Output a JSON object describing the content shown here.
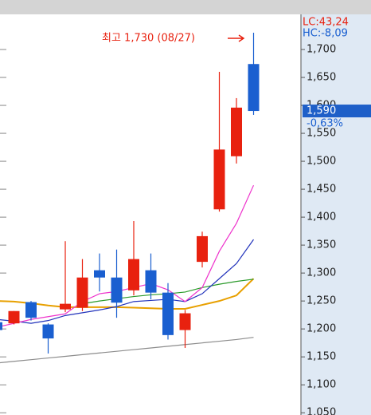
{
  "chart_data": {
    "type": "candlestick",
    "categories": [
      null,
      null,
      null,
      null,
      null,
      null,
      null,
      null,
      null,
      null,
      null,
      null,
      null,
      null,
      null,
      null
    ],
    "candles": {
      "open": [
        1212,
        1210,
        1248,
        1208,
        1235,
        1238,
        1305,
        1292,
        1269,
        1305,
        1265,
        1198,
        1320,
        1414,
        1509,
        1674
      ],
      "high": [
        1215,
        1232,
        1250,
        1210,
        1357,
        1325,
        1335,
        1342,
        1393,
        1335,
        1282,
        1234,
        1374,
        1660,
        1613,
        1730
      ],
      "low": [
        1195,
        1208,
        1215,
        1156,
        1230,
        1232,
        1267,
        1220,
        1260,
        1253,
        1181,
        1166,
        1310,
        1410,
        1496,
        1583
      ],
      "close": [
        1198,
        1232,
        1220,
        1183,
        1245,
        1292,
        1292,
        1247,
        1325,
        1265,
        1189,
        1228,
        1366,
        1521,
        1596,
        1590
      ],
      "up_color": "#e8210f",
      "down_color": "#1a5fd0"
    },
    "lines": [
      {
        "color": "#8c8c8c",
        "values": [
          1139,
          1142,
          1145,
          1148,
          1151,
          1154,
          1157,
          1160,
          1163,
          1166,
          1169,
          1172,
          1175,
          1178,
          1181,
          1185
        ]
      },
      {
        "color": "#e8a000",
        "values": [
          1250,
          1249,
          1246,
          1242,
          1239,
          1239,
          1239,
          1239,
          1238,
          1237,
          1236,
          1236,
          1243,
          1250,
          1260,
          1290
        ]
      },
      {
        "color": "#2a9a2a",
        "values": [
          null,
          null,
          null,
          null,
          null,
          1245,
          1250,
          1254,
          1258,
          1261,
          1263,
          1266,
          1274,
          1280,
          1285,
          1289
        ]
      },
      {
        "color": "#2233bb",
        "values": [
          1217,
          1214,
          1210,
          1215,
          1224,
          1229,
          1234,
          1240,
          1249,
          1251,
          1253,
          1249,
          1263,
          1290,
          1317,
          1360
        ]
      },
      {
        "color": "#ee33cc",
        "values": [
          1203,
          1210,
          1217,
          1222,
          1227,
          1249,
          1263,
          1267,
          1274,
          1281,
          1270,
          1249,
          1274,
          1339,
          1389,
          1457
        ]
      }
    ],
    "ylim": [
      1046,
      1760
    ],
    "yticks": [
      {
        "value": 1050,
        "label": "1,050"
      },
      {
        "value": 1100,
        "label": "1,100"
      },
      {
        "value": 1150,
        "label": "1,150"
      },
      {
        "value": 1200,
        "label": "1,200"
      },
      {
        "value": 1250,
        "label": "1,250"
      },
      {
        "value": 1300,
        "label": "1,300"
      },
      {
        "value": 1350,
        "label": "1,350"
      },
      {
        "value": 1400,
        "label": "1,400"
      },
      {
        "value": 1450,
        "label": "1,450"
      },
      {
        "value": 1500,
        "label": "1,500"
      },
      {
        "value": 1550,
        "label": "1,550"
      },
      {
        "value": 1600,
        "label": "1,600"
      },
      {
        "value": 1650,
        "label": "1,650"
      },
      {
        "value": 1700,
        "label": "1,700"
      }
    ],
    "annotation": {
      "text": "최고 1,730 (08/27)",
      "value": 1730
    },
    "indicators": [
      {
        "text": "LC:43,24",
        "color": "#e8210f"
      },
      {
        "text": "HC:-8,09",
        "color": "#1a5fd0"
      }
    ],
    "last_price": {
      "value": 1590,
      "label": "1,590"
    },
    "change": "-0,63%"
  }
}
